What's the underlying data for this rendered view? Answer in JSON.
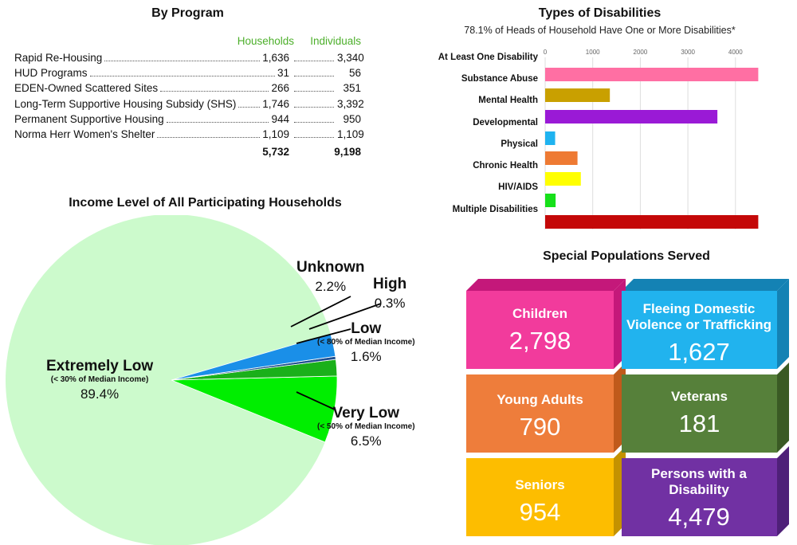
{
  "program": {
    "title": "By Program",
    "col_households": "Households",
    "col_individuals": "Individuals",
    "rows": [
      {
        "name": "Rapid Re-Housing",
        "households": "1,636",
        "individuals": "3,340"
      },
      {
        "name": "HUD Programs",
        "households": "31",
        "individuals": "56"
      },
      {
        "name": "EDEN-Owned Scattered Sites",
        "households": "266",
        "individuals": "351"
      },
      {
        "name": "Long-Term Supportive Housing Subsidy (SHS)",
        "households": "1,746",
        "individuals": "3,392"
      },
      {
        "name": "Permanent Supportive Housing",
        "households": "944",
        "individuals": "950"
      },
      {
        "name": "Norma Herr Women's Shelter",
        "households": "1,109",
        "individuals": "1,109"
      }
    ],
    "total_households": "5,732",
    "total_individuals": "9,198"
  },
  "disabilities": {
    "title": "Types of Disabilities",
    "subtitle": "78.1% of Heads of Household Have One or More Disabilities*"
  },
  "income": {
    "title": "Income Level of All Participating Households",
    "slices": [
      {
        "name": "Extremely Low",
        "sub": "(< 30% of Median Income)",
        "pct": "89.4%"
      },
      {
        "name": "Very Low",
        "sub": "(< 50% of Median Income)",
        "pct": "6.5%"
      },
      {
        "name": "Low",
        "sub": "(< 80% of Median Income)",
        "pct": "1.6%"
      },
      {
        "name": "High",
        "sub": "",
        "pct": "0.3%"
      },
      {
        "name": "Unknown",
        "sub": "",
        "pct": "2.2%"
      }
    ]
  },
  "special": {
    "title": "Special Populations Served",
    "blocks": [
      {
        "label": "Children",
        "value": "2,798"
      },
      {
        "label": "Fleeing Domestic Violence or Trafficking",
        "value": "1,627"
      },
      {
        "label": "Young Adults",
        "value": "790"
      },
      {
        "label": "Veterans",
        "value": "181"
      },
      {
        "label": "Seniors",
        "value": "954"
      },
      {
        "label": "Persons with a Disability",
        "value": "4,479"
      }
    ]
  },
  "chart_data": [
    {
      "type": "bar",
      "orientation": "horizontal",
      "title": "Types of Disabilities",
      "subtitle": "78.1% of Heads of Household Have One or More Disabilities*",
      "categories": [
        "At Least One Disability",
        "Substance Abuse",
        "Mental Health",
        "Developmental",
        "Physical",
        "Chronic Health",
        "HIV/AIDS",
        "Multiple Disabilities"
      ],
      "values": [
        4479,
        1360,
        3620,
        210,
        680,
        750,
        220,
        4479
      ],
      "colors": [
        "#ff6fa3",
        "#c9a000",
        "#9a1ad6",
        "#1fb3f0",
        "#ee7a33",
        "#ffff00",
        "#16e01a",
        "#c40808"
      ],
      "xticks": [
        0,
        1000,
        2000,
        3000,
        4000
      ],
      "xlim": [
        0,
        4550
      ],
      "grid": true
    },
    {
      "type": "pie",
      "title": "Income Level of All Participating Households",
      "labels": [
        "Extremely Low",
        "Very Low",
        "Low",
        "High",
        "Unknown"
      ],
      "values": [
        89.4,
        6.5,
        1.6,
        0.3,
        2.2
      ],
      "colors": [
        "#ccfacc",
        "#00ee00",
        "#1ab01a",
        "#1f4f8f",
        "#1a8fe8"
      ]
    }
  ]
}
